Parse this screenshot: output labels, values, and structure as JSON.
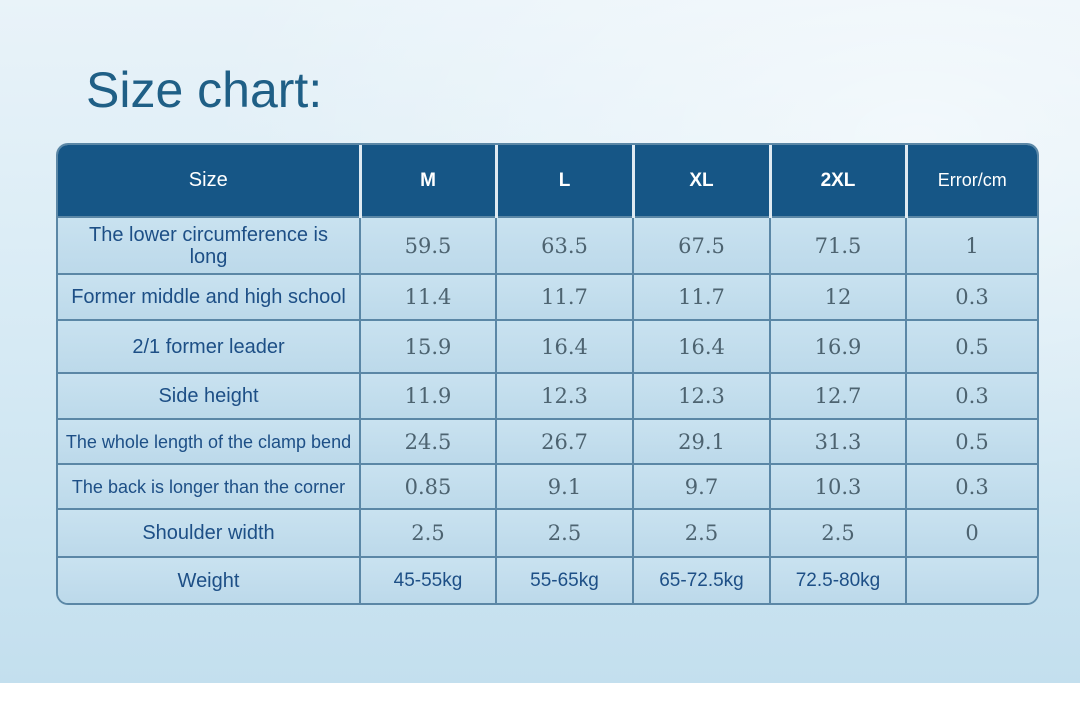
{
  "page": {
    "title": "Size chart:"
  },
  "table": {
    "headers": [
      "Size",
      "M",
      "L",
      "XL",
      "2XL",
      "Error/cm"
    ],
    "rows": [
      {
        "label": "The lower circumference is long",
        "values": [
          "59.5",
          "63.5",
          "67.5",
          "71.5",
          "1"
        ]
      },
      {
        "label": "Former middle and high school",
        "values": [
          "11.4",
          "11.7",
          "11.7",
          "12",
          "0.3"
        ]
      },
      {
        "label": "2/1 former leader",
        "values": [
          "15.9",
          "16.4",
          "16.4",
          "16.9",
          "0.5"
        ]
      },
      {
        "label": "Side height",
        "values": [
          "11.9",
          "12.3",
          "12.3",
          "12.7",
          "0.3"
        ]
      },
      {
        "label": "The whole length of the clamp bend",
        "values": [
          "24.5",
          "26.7",
          "29.1",
          "31.3",
          "0.5"
        ]
      },
      {
        "label": "The back is longer than the corner",
        "values": [
          "0.85",
          "9.1",
          "9.7",
          "10.3",
          "0.3"
        ]
      },
      {
        "label": "Shoulder width",
        "values": [
          "2.5",
          "2.5",
          "2.5",
          "2.5",
          "0"
        ]
      },
      {
        "label": "Weight",
        "values": [
          "45-55kg",
          "55-65kg",
          "65-72.5kg",
          "72.5-80kg",
          ""
        ]
      }
    ]
  },
  "colors": {
    "header_bg": "#165686",
    "title": "#1f5f86",
    "label_text": "#1d4f86",
    "value_text": "#4d6370",
    "cell_bg": "#c4deed",
    "border": "#5b87a6"
  }
}
